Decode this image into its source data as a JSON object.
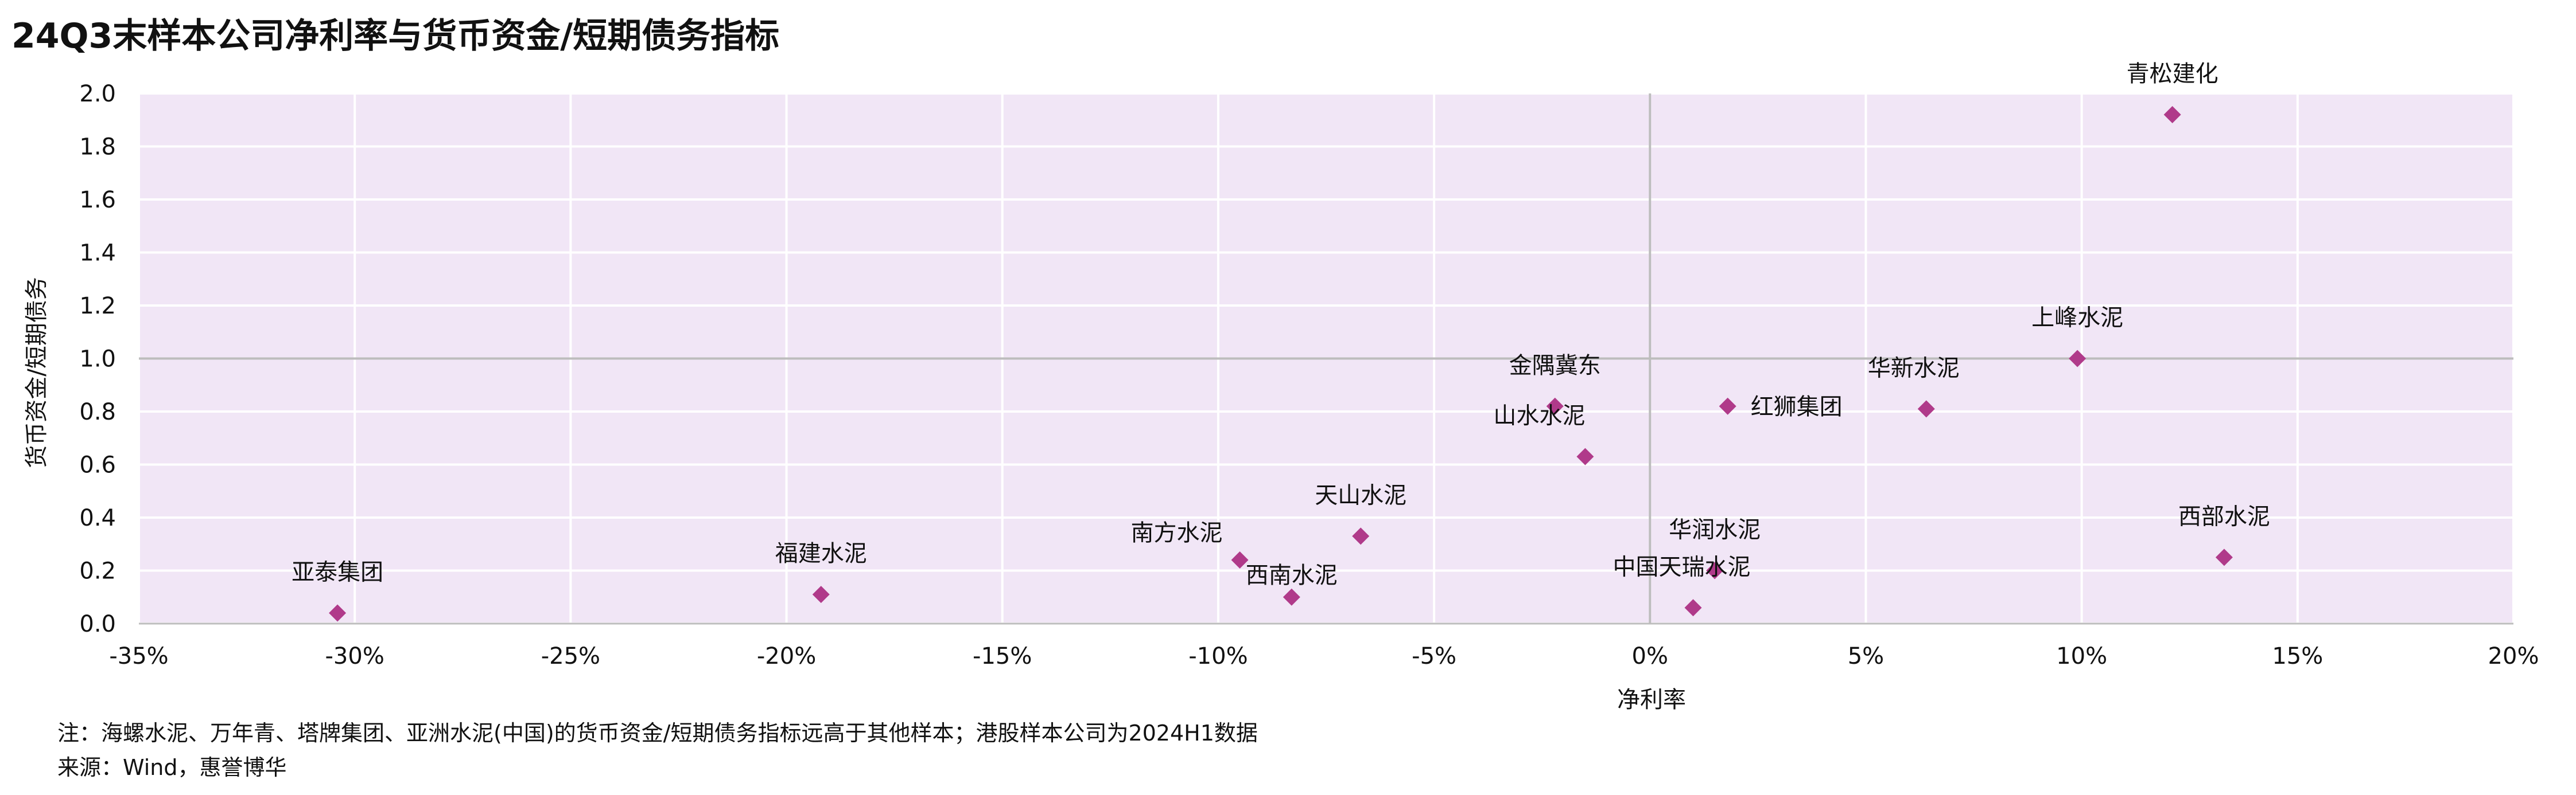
{
  "title": "24Q3末样本公司净利率与货币资金/短期债务指标",
  "note": "注：海螺水泥、万年青、塔牌集团、亚洲水泥(中国)的货币资金/短期债务指标远高于其他样本；港股样本公司为2024H1数据",
  "source": "来源：Wind，惠誉博华",
  "colors": {
    "plot_bg": "#f1e6f6",
    "grid": "#ffffff",
    "marker": "#b03a8a",
    "reference_line": "#bdbdbd"
  },
  "chart_data": {
    "type": "scatter",
    "title": "24Q3末样本公司净利率与货币资金/短期债务指标",
    "xlabel": "净利率",
    "ylabel": "货币资金/短期债务",
    "xlim": [
      -0.35,
      0.2
    ],
    "ylim": [
      0.0,
      2.0
    ],
    "x_ticks": [
      -0.35,
      -0.3,
      -0.25,
      -0.2,
      -0.15,
      -0.1,
      -0.05,
      0.0,
      0.05,
      0.1,
      0.15,
      0.2
    ],
    "x_tick_labels": [
      "-35%",
      "-30%",
      "-25%",
      "-20%",
      "-15%",
      "-10%",
      "-5%",
      "0%",
      "5%",
      "10%",
      "15%",
      "20%"
    ],
    "y_ticks": [
      0.0,
      0.2,
      0.4,
      0.6,
      0.8,
      1.0,
      1.2,
      1.4,
      1.6,
      1.8,
      2.0
    ],
    "y_tick_labels": [
      "0.0",
      "0.2",
      "0.4",
      "0.6",
      "0.8",
      "1.0",
      "1.2",
      "1.4",
      "1.6",
      "1.8",
      "2.0"
    ],
    "reference_lines": {
      "x": 0.0,
      "y": 1.0
    },
    "grid": true,
    "legend": "none",
    "points": [
      {
        "label": "青松建化",
        "x": 0.121,
        "y": 1.92
      },
      {
        "label": "上峰水泥",
        "x": 0.099,
        "y": 1.0
      },
      {
        "label": "华新水泥",
        "x": 0.064,
        "y": 0.81
      },
      {
        "label": "红狮集团",
        "x": 0.018,
        "y": 0.82
      },
      {
        "label": "金隅冀东",
        "x": -0.022,
        "y": 0.82
      },
      {
        "label": "山水水泥",
        "x": -0.015,
        "y": 0.63
      },
      {
        "label": "西部水泥",
        "x": 0.133,
        "y": 0.25
      },
      {
        "label": "华润水泥",
        "x": 0.015,
        "y": 0.2
      },
      {
        "label": "中国天瑞水泥",
        "x": 0.01,
        "y": 0.06
      },
      {
        "label": "天山水泥",
        "x": -0.067,
        "y": 0.33
      },
      {
        "label": "南方水泥",
        "x": -0.095,
        "y": 0.24
      },
      {
        "label": "西南水泥",
        "x": -0.083,
        "y": 0.1
      },
      {
        "label": "福建水泥",
        "x": -0.192,
        "y": 0.11
      },
      {
        "label": "亚泰集团",
        "x": -0.304,
        "y": 0.04
      }
    ]
  }
}
